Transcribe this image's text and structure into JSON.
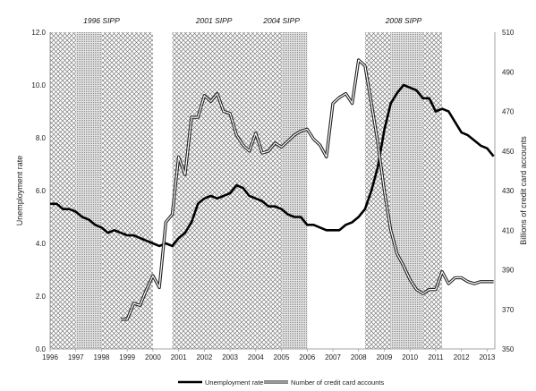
{
  "chart_data": {
    "type": "line",
    "title": "",
    "ylabel": "Unemployment rate",
    "y2label": "Billions of credit card accounts",
    "ylim": [
      0,
      12
    ],
    "y2lim": [
      350,
      510
    ],
    "xlim": [
      1996,
      2013.3
    ],
    "y_ticks": [
      "0.0",
      "2.0",
      "4.0",
      "6.0",
      "8.0",
      "10.0",
      "12.0"
    ],
    "y2_ticks": [
      "350",
      "370",
      "390",
      "410",
      "430",
      "450",
      "470",
      "490",
      "510"
    ],
    "x_ticks": [
      "1996",
      "1997",
      "1998",
      "1999",
      "2000",
      "2001",
      "2002",
      "2003",
      "2004",
      "2005",
      "2006",
      "2007",
      "2008",
      "2009",
      "2010",
      "2011",
      "2012",
      "2013"
    ],
    "sipp_panels": [
      {
        "label": "1996 SIPP",
        "start": 1996.0,
        "end": 2000.0,
        "dense_start": 1997.0,
        "dense_end": 1998.0
      },
      {
        "label": "2001 SIPP",
        "start": 2000.75,
        "end": 2004.0,
        "dense_start": null,
        "dense_end": null
      },
      {
        "label": "2004 SIPP",
        "start": 2004.0,
        "end": 2006.0,
        "dense_start": 2005.0,
        "dense_end": 2006.0
      },
      {
        "label": "2008 SIPP",
        "start": 2008.25,
        "end": 2011.25,
        "dense_start": 2009.25,
        "dense_end": 2010.5
      }
    ],
    "legend": {
      "placement": "bottom"
    },
    "series": [
      {
        "name": "Unemployment rate",
        "axis": "left",
        "color": "#000000",
        "style": "solid-thick",
        "x": [
          1996.0,
          1996.25,
          1996.5,
          1996.75,
          1997.0,
          1997.25,
          1997.5,
          1997.75,
          1998.0,
          1998.25,
          1998.5,
          1998.75,
          1999.0,
          1999.25,
          1999.5,
          1999.75,
          2000.0,
          2000.25,
          2000.5,
          2000.75,
          2001.0,
          2001.25,
          2001.5,
          2001.75,
          2002.0,
          2002.25,
          2002.5,
          2002.75,
          2003.0,
          2003.25,
          2003.5,
          2003.75,
          2004.0,
          2004.25,
          2004.5,
          2004.75,
          2005.0,
          2005.25,
          2005.5,
          2005.75,
          2006.0,
          2006.25,
          2006.5,
          2006.75,
          2007.0,
          2007.25,
          2007.5,
          2007.75,
          2008.0,
          2008.25,
          2008.5,
          2008.75,
          2009.0,
          2009.25,
          2009.5,
          2009.75,
          2010.0,
          2010.25,
          2010.5,
          2010.75,
          2011.0,
          2011.25,
          2011.5,
          2011.75,
          2012.0,
          2012.25,
          2012.5,
          2012.75,
          2013.0,
          2013.25
        ],
        "values": [
          5.5,
          5.5,
          5.3,
          5.3,
          5.2,
          5.0,
          4.9,
          4.7,
          4.6,
          4.4,
          4.5,
          4.4,
          4.3,
          4.3,
          4.2,
          4.1,
          4.0,
          3.9,
          4.0,
          3.9,
          4.2,
          4.4,
          4.8,
          5.5,
          5.7,
          5.8,
          5.7,
          5.8,
          5.9,
          6.2,
          6.1,
          5.8,
          5.7,
          5.6,
          5.4,
          5.4,
          5.3,
          5.1,
          5.0,
          5.0,
          4.7,
          4.7,
          4.6,
          4.5,
          4.5,
          4.5,
          4.7,
          4.8,
          5.0,
          5.3,
          6.0,
          6.9,
          8.3,
          9.3,
          9.7,
          10.0,
          9.9,
          9.8,
          9.5,
          9.5,
          9.0,
          9.1,
          9.0,
          8.6,
          8.2,
          8.1,
          7.9,
          7.7,
          7.6,
          7.3
        ]
      },
      {
        "name": "Number of credit card accounts",
        "axis": "right",
        "color": "#555555",
        "style": "double",
        "x": [
          1998.75,
          1999.0,
          1999.25,
          1999.5,
          1999.75,
          2000.0,
          2000.25,
          2000.5,
          2000.75,
          2001.0,
          2001.25,
          2001.5,
          2001.75,
          2002.0,
          2002.25,
          2002.5,
          2002.75,
          2003.0,
          2003.25,
          2003.5,
          2003.75,
          2004.0,
          2004.25,
          2004.5,
          2004.75,
          2005.0,
          2005.25,
          2005.5,
          2005.75,
          2006.0,
          2006.25,
          2006.5,
          2006.75,
          2007.0,
          2007.25,
          2007.5,
          2007.75,
          2008.0,
          2008.25,
          2008.5,
          2008.75,
          2009.0,
          2009.25,
          2009.5,
          2009.75,
          2010.0,
          2010.25,
          2010.5,
          2010.75,
          2011.0,
          2011.25,
          2011.5,
          2011.75,
          2012.0,
          2012.25,
          2012.5,
          2012.75,
          2013.0,
          2013.25
        ],
        "values": [
          365,
          365,
          373,
          372,
          380,
          387,
          381,
          414,
          418,
          447,
          438,
          467,
          467,
          478,
          475,
          479,
          470,
          469,
          458,
          453,
          450,
          459,
          449,
          450,
          454,
          452,
          455,
          458,
          460,
          461,
          456,
          453,
          447,
          474,
          477,
          479,
          474,
          496,
          493,
          474,
          454,
          430,
          410,
          398,
          392,
          385,
          380,
          378,
          380,
          380,
          389,
          383,
          386,
          386,
          384,
          383,
          384,
          384,
          384
        ]
      }
    ]
  }
}
